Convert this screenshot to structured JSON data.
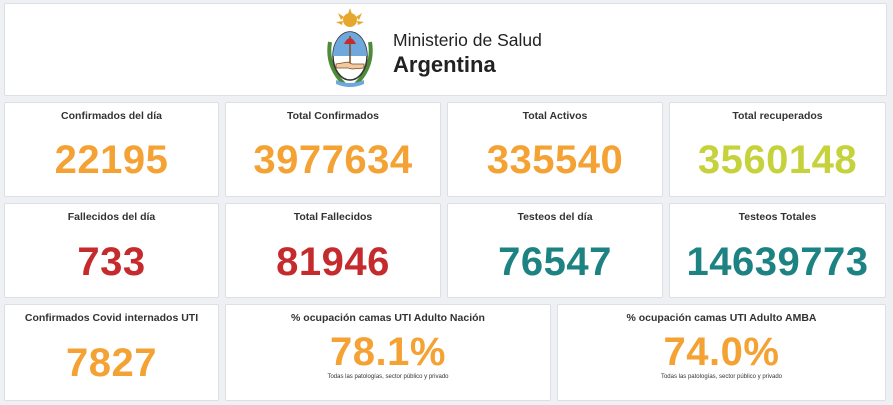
{
  "header": {
    "line1": "Ministerio de Salud",
    "line2": "Argentina",
    "logo_icon": "argentina-coat-of-arms-icon"
  },
  "colors": {
    "orange": "#f3a233",
    "yellow_green": "#c6d23c",
    "red": "#c52a2d",
    "teal": "#1d8282"
  },
  "cards": {
    "confirmados_dia": {
      "label": "Confirmados del día",
      "value": "22195"
    },
    "total_confirmados": {
      "label": "Total Confirmados",
      "value": "3977634"
    },
    "total_activos": {
      "label": "Total Activos",
      "value": "335540"
    },
    "total_recuperados": {
      "label": "Total recuperados",
      "value": "3560148"
    },
    "fallecidos_dia": {
      "label": "Fallecidos del día",
      "value": "733"
    },
    "total_fallecidos": {
      "label": "Total Fallecidos",
      "value": "81946"
    },
    "testeos_dia": {
      "label": "Testeos del día",
      "value": "76547"
    },
    "testeos_totales": {
      "label": "Testeos Totales",
      "value": "14639773"
    },
    "internados_uti": {
      "label": "Confirmados Covid internados UTI",
      "value": "7827"
    },
    "ocupacion_nacion": {
      "label": "% ocupación camas UTI Adulto Nación",
      "value": "78.1%",
      "note": "Todas las patologías, sector público y privado"
    },
    "ocupacion_amba": {
      "label": "% ocupación camas UTI Adulto AMBA",
      "value": "74.0%",
      "note": "Todas las patologías, sector público y privado"
    }
  }
}
